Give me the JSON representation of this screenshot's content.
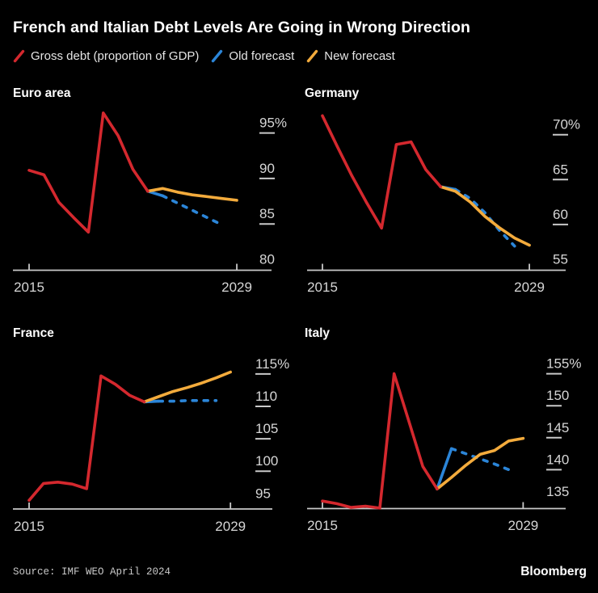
{
  "header": {
    "title": "French and Italian Debt Levels Are Going in Wrong Direction"
  },
  "legend": [
    {
      "label": "Gross debt (proportion of GDP)",
      "color": "#d4282e"
    },
    {
      "label": "Old forecast",
      "color": "#2b85d8"
    },
    {
      "label": "New forecast",
      "color": "#f3ab3c"
    }
  ],
  "colors": {
    "actual": "#d4282e",
    "old_forecast": "#2b85d8",
    "new_forecast": "#f3ab3c",
    "axis": "#c9c9c9",
    "tick_text": "#d6d6d6",
    "background": "#000000"
  },
  "footer": {
    "source": "Source: IMF WEO April 2024",
    "brand": "Bloomberg"
  },
  "chart_data": [
    {
      "id": "euro-area",
      "title": "Euro area",
      "type": "line",
      "xlim": [
        2015,
        2029
      ],
      "x_ticks": [
        {
          "year": 2015,
          "label": "2015"
        },
        {
          "year": 2029,
          "label": "2029"
        }
      ],
      "y_ticks": [
        {
          "value": 95,
          "label": "95%"
        },
        {
          "value": 90,
          "label": "90"
        },
        {
          "value": 85,
          "label": "85"
        },
        {
          "value": 80,
          "label": "80"
        }
      ],
      "series": [
        {
          "name": "Gross debt (proportion of GDP)",
          "role": "actual",
          "style": "solid",
          "start_year": 2015,
          "values": [
            90.9,
            90.4,
            87.4,
            85.7,
            84.1,
            97.2,
            94.7,
            91.0,
            88.6
          ]
        },
        {
          "name": "Old forecast",
          "role": "old_forecast",
          "style": "dashed_after_first",
          "start_year": 2023,
          "values": [
            88.6,
            88.1,
            87.3,
            86.5,
            85.7,
            84.9
          ]
        },
        {
          "name": "New forecast",
          "role": "new_forecast",
          "style": "solid",
          "start_year": 2023,
          "values": [
            88.6,
            88.9,
            88.5,
            88.2,
            88.0,
            87.8,
            87.6
          ]
        }
      ]
    },
    {
      "id": "germany",
      "title": "Germany",
      "type": "line",
      "xlim": [
        2015,
        2029
      ],
      "x_ticks": [
        {
          "year": 2015,
          "label": "2015"
        },
        {
          "year": 2029,
          "label": "2029"
        }
      ],
      "y_ticks": [
        {
          "value": 70,
          "label": "70%"
        },
        {
          "value": 65,
          "label": "65"
        },
        {
          "value": 60,
          "label": "60"
        },
        {
          "value": 55,
          "label": "55"
        }
      ],
      "series": [
        {
          "name": "Gross debt (proportion of GDP)",
          "role": "actual",
          "style": "solid",
          "start_year": 2015,
          "values": [
            72.1,
            68.7,
            65.4,
            62.4,
            59.6,
            68.9,
            69.2,
            66.1,
            64.2
          ]
        },
        {
          "name": "Old forecast",
          "role": "old_forecast",
          "style": "dashed_after_first",
          "start_year": 2023,
          "values": [
            64.2,
            63.9,
            62.9,
            61.3,
            59.3,
            57.6
          ]
        },
        {
          "name": "New forecast",
          "role": "new_forecast",
          "style": "solid",
          "start_year": 2023,
          "values": [
            64.2,
            63.7,
            62.5,
            60.9,
            59.6,
            58.5,
            57.7
          ]
        }
      ]
    },
    {
      "id": "france",
      "title": "France",
      "type": "line",
      "xlim": [
        2015,
        2029
      ],
      "x_ticks": [
        {
          "year": 2015,
          "label": "2015"
        },
        {
          "year": 2029,
          "label": "2029"
        }
      ],
      "y_ticks": [
        {
          "value": 115,
          "label": "115%"
        },
        {
          "value": 110,
          "label": "110"
        },
        {
          "value": 105,
          "label": "105"
        },
        {
          "value": 100,
          "label": "100"
        },
        {
          "value": 95,
          "label": "95"
        }
      ],
      "series": [
        {
          "name": "Gross debt (proportion of GDP)",
          "role": "actual",
          "style": "solid",
          "start_year": 2015,
          "values": [
            95.5,
            98.1,
            98.3,
            98.0,
            97.3,
            114.7,
            113.4,
            111.7,
            110.7
          ]
        },
        {
          "name": "Old forecast",
          "role": "old_forecast",
          "style": "dashed_after_first",
          "start_year": 2023,
          "values": [
            110.7,
            110.8,
            110.8,
            110.9,
            110.9,
            110.9
          ]
        },
        {
          "name": "New forecast",
          "role": "new_forecast",
          "style": "solid",
          "start_year": 2023,
          "values": [
            110.7,
            111.5,
            112.3,
            112.9,
            113.6,
            114.4,
            115.3
          ]
        }
      ]
    },
    {
      "id": "italy",
      "title": "Italy",
      "type": "line",
      "xlim": [
        2015,
        2029
      ],
      "x_ticks": [
        {
          "year": 2015,
          "label": "2015"
        },
        {
          "year": 2029,
          "label": "2029"
        }
      ],
      "y_ticks": [
        {
          "value": 155,
          "label": "155%"
        },
        {
          "value": 150,
          "label": "150"
        },
        {
          "value": 145,
          "label": "145"
        },
        {
          "value": 140,
          "label": "140"
        },
        {
          "value": 135,
          "label": "135"
        }
      ],
      "series": [
        {
          "name": "Gross debt (proportion of GDP)",
          "role": "actual",
          "style": "solid",
          "start_year": 2015,
          "values": [
            135.1,
            134.7,
            134.1,
            134.3,
            134.0,
            155.0,
            147.8,
            140.5,
            137.0
          ]
        },
        {
          "name": "Old forecast",
          "role": "old_forecast",
          "style": "dashed_after_first",
          "start_year": 2023,
          "values": [
            137.0,
            143.3,
            142.5,
            141.7,
            140.9,
            140.0
          ]
        },
        {
          "name": "New forecast",
          "role": "new_forecast",
          "style": "solid",
          "start_year": 2023,
          "values": [
            137.0,
            138.8,
            140.7,
            142.4,
            143.0,
            144.5,
            144.9
          ]
        }
      ]
    }
  ]
}
